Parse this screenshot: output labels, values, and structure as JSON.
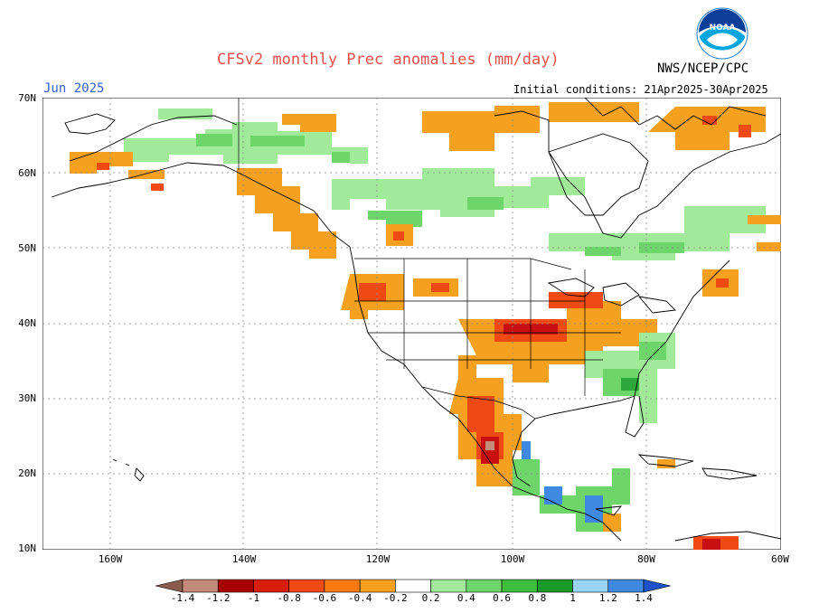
{
  "header": {
    "title": "CFSv2 monthly Prec anomalies (mm/day)",
    "agency": "NWS/NCEP/CPC",
    "period": "Jun 2025",
    "initial_conditions": "Initial conditions: 21Apr2025-30Apr2025",
    "logo_text": "NOAA"
  },
  "axes": {
    "lat_labels": [
      "70N",
      "60N",
      "50N",
      "40N",
      "30N",
      "20N",
      "10N"
    ],
    "lon_labels": [
      "160W",
      "140W",
      "120W",
      "100W",
      "80W",
      "60W"
    ]
  },
  "colorbar": {
    "labels": [
      "-1.4",
      "-1.2",
      "-1",
      "-0.8",
      "-0.6",
      "-0.4",
      "-0.2",
      "0.2",
      "0.4",
      "0.6",
      "0.8",
      "1",
      "1.2",
      "1.4"
    ],
    "colors": [
      "#8a5a4a",
      "#c48a7a",
      "#a80000",
      "#d81e0a",
      "#f04a14",
      "#f77a14",
      "#f5a01e",
      "#ffffff",
      "#a0ea9a",
      "#6ed56a",
      "#3ebd3e",
      "#1a9a2a",
      "#9ad4f5",
      "#3f8ae0",
      "#1e50c8"
    ],
    "colors_note": ""
  },
  "colors": {
    "dry_light": "#f5a01e",
    "dry_mid": "#f04a14",
    "dry_strong": "#c81010",
    "wet_light": "#a0ea9a",
    "wet_mid": "#6ed56a",
    "wet_strong": "#2ea83a",
    "wet_blue": "#3f8ae0"
  }
}
